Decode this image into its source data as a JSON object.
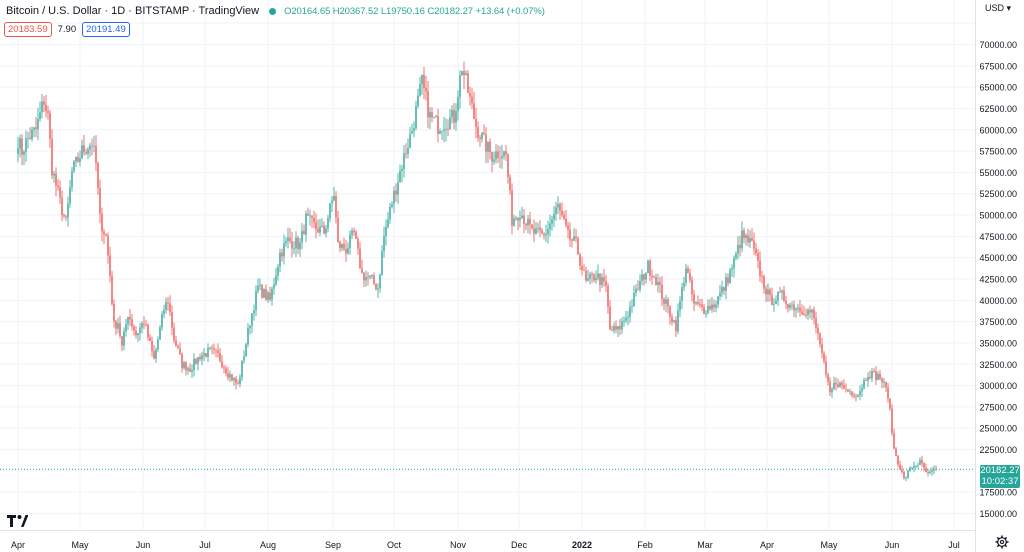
{
  "header": {
    "title": "Bitcoin / U.S. Dollar · 1D · BITSTAMP · TradingView",
    "ohlc": "O20164.65 H20367.52 L19750.16 C20182.27 +13.64 (+0.07%)",
    "bid": "20183.59",
    "spread": "7.90",
    "ask": "20191.49"
  },
  "price_axis": {
    "currency": "USD",
    "last_price": "20182.27",
    "countdown": "10:02:37"
  },
  "icons": {
    "logo": "tradingview-logo-icon",
    "settings": "gear-icon"
  },
  "colors": {
    "up": "#26a69a",
    "down": "#ef5350",
    "grid": "#f0f3fa",
    "last": "#26a69a"
  },
  "chart_data": {
    "type": "candlestick",
    "ylim": [
      15000,
      72500
    ],
    "yticks": [
      15000,
      17500,
      20000,
      22500,
      25000,
      27500,
      30000,
      32500,
      35000,
      37500,
      40000,
      42500,
      45000,
      47500,
      50000,
      52500,
      55000,
      57500,
      60000,
      62500,
      65000,
      67500,
      70000,
      72500
    ],
    "x_categories": [
      "Apr",
      "May",
      "Jun",
      "Jul",
      "Aug",
      "Sep",
      "Oct",
      "Nov",
      "Dec",
      "2022",
      "Feb",
      "Mar",
      "Apr",
      "May",
      "Jun",
      "Jul"
    ],
    "grid": true,
    "last_price": 20182.27,
    "price_path": [
      {
        "t": "Apr 1",
        "p": 58800
      },
      {
        "t": "Apr 3",
        "p": 57500
      },
      {
        "t": "Apr 6",
        "p": 59000
      },
      {
        "t": "Apr 10",
        "p": 60000
      },
      {
        "t": "Apr 14",
        "p": 63500
      },
      {
        "t": "Apr 16",
        "p": 61500
      },
      {
        "t": "Apr 18",
        "p": 55500
      },
      {
        "t": "Apr 22",
        "p": 51500
      },
      {
        "t": "Apr 25",
        "p": 49000
      },
      {
        "t": "Apr 28",
        "p": 55000
      },
      {
        "t": "May 3",
        "p": 57500
      },
      {
        "t": "May 8",
        "p": 58500
      },
      {
        "t": "May 10",
        "p": 56000
      },
      {
        "t": "May 12",
        "p": 49500
      },
      {
        "t": "May 15",
        "p": 47500
      },
      {
        "t": "May 17",
        "p": 43000
      },
      {
        "t": "May 19",
        "p": 37000
      },
      {
        "t": "May 21",
        "p": 37500
      },
      {
        "t": "May 23",
        "p": 34500
      },
      {
        "t": "May 26",
        "p": 38500
      },
      {
        "t": "May 30",
        "p": 36000
      },
      {
        "t": "Jun 3",
        "p": 37500
      },
      {
        "t": "Jun 8",
        "p": 33000
      },
      {
        "t": "Jun 13",
        "p": 39000
      },
      {
        "t": "Jun 15",
        "p": 40000
      },
      {
        "t": "Jun 18",
        "p": 35500
      },
      {
        "t": "Jun 22",
        "p": 32500
      },
      {
        "t": "Jun 26",
        "p": 32000
      },
      {
        "t": "Jul 1",
        "p": 33500
      },
      {
        "t": "Jul 6",
        "p": 34000
      },
      {
        "t": "Jul 10",
        "p": 33500
      },
      {
        "t": "Jul 15",
        "p": 31500
      },
      {
        "t": "Jul 20",
        "p": 30000
      },
      {
        "t": "Jul 22",
        "p": 32500
      },
      {
        "t": "Jul 26",
        "p": 37500
      },
      {
        "t": "Jul 30",
        "p": 41500
      },
      {
        "t": "Aug 5",
        "p": 40000
      },
      {
        "t": "Aug 10",
        "p": 45500
      },
      {
        "t": "Aug 14",
        "p": 47000
      },
      {
        "t": "Aug 20",
        "p": 46500
      },
      {
        "t": "Aug 23",
        "p": 49500
      },
      {
        "t": "Aug 28",
        "p": 48500
      },
      {
        "t": "Sep 1",
        "p": 48000
      },
      {
        "t": "Sep 6",
        "p": 52500
      },
      {
        "t": "Sep 8",
        "p": 46500
      },
      {
        "t": "Sep 12",
        "p": 46000
      },
      {
        "t": "Sep 16",
        "p": 47800
      },
      {
        "t": "Sep 20",
        "p": 43000
      },
      {
        "t": "Sep 24",
        "p": 42500
      },
      {
        "t": "Sep 28",
        "p": 41500
      },
      {
        "t": "Oct 1",
        "p": 47500
      },
      {
        "t": "Oct 5",
        "p": 51500
      },
      {
        "t": "Oct 10",
        "p": 56000
      },
      {
        "t": "Oct 15",
        "p": 60000
      },
      {
        "t": "Oct 20",
        "p": 65500
      },
      {
        "t": "Oct 24",
        "p": 61500
      },
      {
        "t": "Oct 28",
        "p": 60500
      },
      {
        "t": "Nov 1",
        "p": 61000
      },
      {
        "t": "Nov 5",
        "p": 61500
      },
      {
        "t": "Nov 9",
        "p": 67500
      },
      {
        "t": "Nov 12",
        "p": 64500
      },
      {
        "t": "Nov 16",
        "p": 60500
      },
      {
        "t": "Nov 20",
        "p": 58500
      },
      {
        "t": "Nov 24",
        "p": 57000
      },
      {
        "t": "Nov 28",
        "p": 57500
      },
      {
        "t": "Dec 1",
        "p": 57000
      },
      {
        "t": "Dec 4",
        "p": 49500
      },
      {
        "t": "Dec 8",
        "p": 50500
      },
      {
        "t": "Dec 14",
        "p": 48000
      },
      {
        "t": "Dec 20",
        "p": 47500
      },
      {
        "t": "Dec 27",
        "p": 51000
      },
      {
        "t": "Jan 1",
        "p": 47500
      },
      {
        "t": "Jan 5",
        "p": 46500
      },
      {
        "t": "Jan 10",
        "p": 42000
      },
      {
        "t": "Jan 15",
        "p": 43000
      },
      {
        "t": "Jan 20",
        "p": 41500
      },
      {
        "t": "Jan 22",
        "p": 36500
      },
      {
        "t": "Jan 26",
        "p": 36500
      },
      {
        "t": "Jan 31",
        "p": 38500
      },
      {
        "t": "Feb 5",
        "p": 41500
      },
      {
        "t": "Feb 10",
        "p": 44000
      },
      {
        "t": "Feb 14",
        "p": 42500
      },
      {
        "t": "Feb 18",
        "p": 40000
      },
      {
        "t": "Feb 24",
        "p": 37000
      },
      {
        "t": "Mar 1",
        "p": 44000
      },
      {
        "t": "Mar 5",
        "p": 39500
      },
      {
        "t": "Mar 10",
        "p": 39000
      },
      {
        "t": "Mar 15",
        "p": 39500
      },
      {
        "t": "Mar 20",
        "p": 41500
      },
      {
        "t": "Mar 25",
        "p": 44500
      },
      {
        "t": "Mar 29",
        "p": 47500
      },
      {
        "t": "Apr 3",
        "p": 46500
      },
      {
        "t": "Apr 8",
        "p": 42500
      },
      {
        "t": "Apr 12",
        "p": 40000
      },
      {
        "t": "Apr 18",
        "p": 40500
      },
      {
        "t": "Apr 22",
        "p": 39500
      },
      {
        "t": "Apr 28",
        "p": 39000
      },
      {
        "t": "May 3",
        "p": 38500
      },
      {
        "t": "May 7",
        "p": 35000
      },
      {
        "t": "May 10",
        "p": 31000
      },
      {
        "t": "May 12",
        "p": 29000
      },
      {
        "t": "May 15",
        "p": 30500
      },
      {
        "t": "May 20",
        "p": 29500
      },
      {
        "t": "May 26",
        "p": 29000
      },
      {
        "t": "May 31",
        "p": 31500
      },
      {
        "t": "Jun 6",
        "p": 31000
      },
      {
        "t": "Jun 10",
        "p": 29000
      },
      {
        "t": "Jun 13",
        "p": 22500
      },
      {
        "t": "Jun 18",
        "p": 19000
      },
      {
        "t": "Jun 22",
        "p": 20500
      },
      {
        "t": "Jun 26",
        "p": 21000
      },
      {
        "t": "Jun 30",
        "p": 19500
      },
      {
        "t": "Jul 4",
        "p": 20200
      }
    ]
  }
}
